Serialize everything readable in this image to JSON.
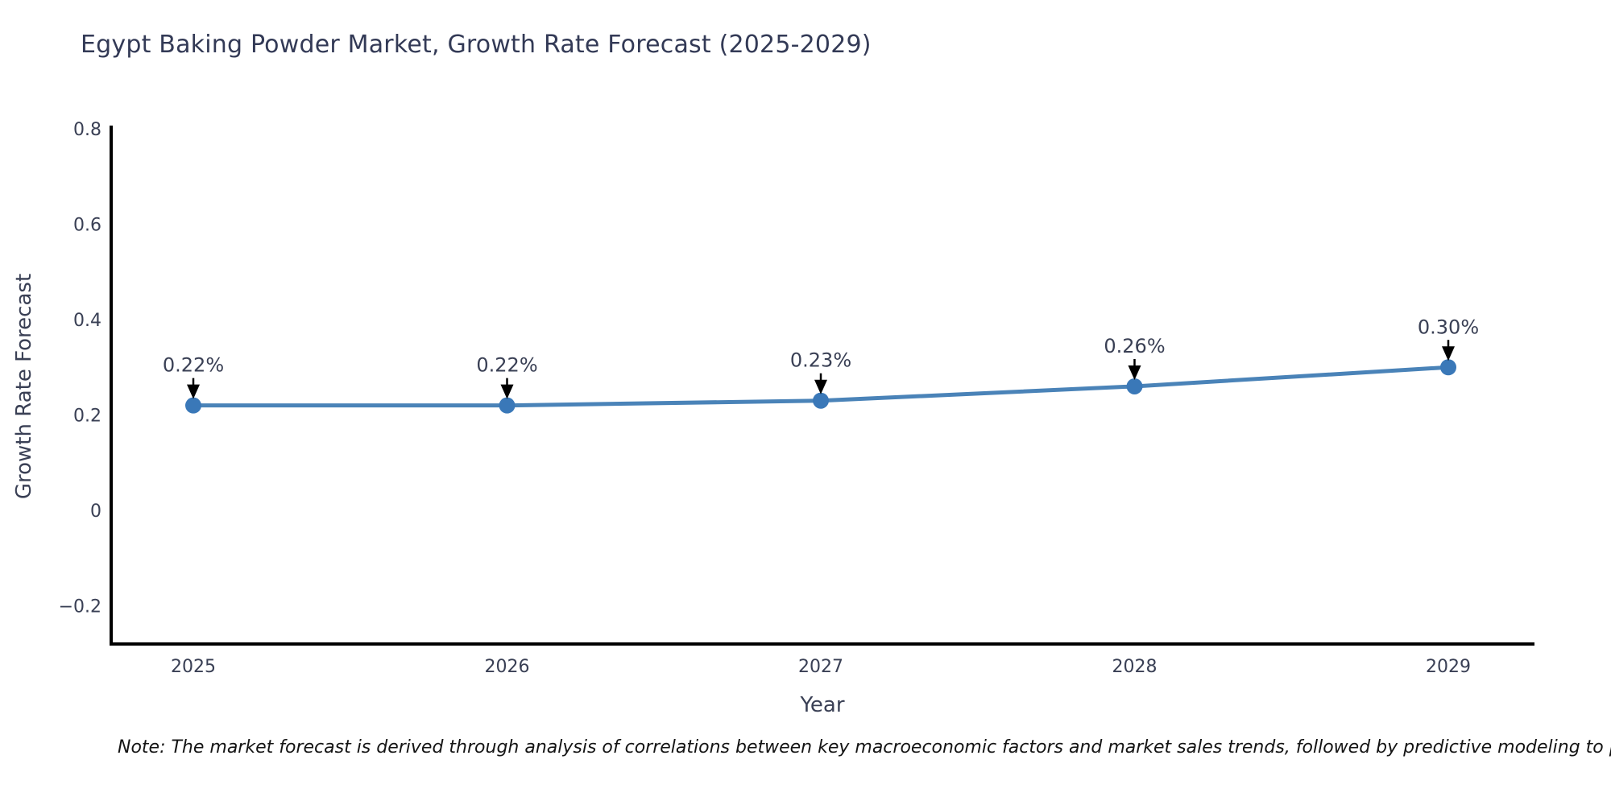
{
  "title": "Egypt Baking Powder Market, Growth Rate Forecast (2025-2029)",
  "note": "Note: The market forecast is derived through analysis of correlations between key macroeconomic factors and market sales trends, followed by predictive modeling to project future sales",
  "colors": {
    "line": "#4a83b8",
    "marker": "#3a78b8",
    "arrow": "#000000",
    "axis": "#000000",
    "tick_text": "#3a4055",
    "annotation_text": "#3a4055",
    "title_text": "#333a56",
    "background": "#ffffff"
  },
  "chart_data": {
    "type": "line",
    "title": "Egypt Baking Powder Market, Growth Rate Forecast (2025-2029)",
    "x": [
      2025,
      2026,
      2027,
      2028,
      2029
    ],
    "values": [
      0.22,
      0.22,
      0.23,
      0.26,
      0.3
    ],
    "point_labels": [
      "0.22%",
      "0.22%",
      "0.23%",
      "0.26%",
      "0.30%"
    ],
    "xlabel": "Year",
    "ylabel": "Growth Rate Forecast",
    "xtick_labels": [
      "2025",
      "2026",
      "2027",
      "2028",
      "2029"
    ],
    "yticks": [
      -0.2,
      0,
      0.2,
      0.4,
      0.6,
      0.8
    ],
    "ytick_labels": [
      "−0.2",
      "0",
      "0.2",
      "0.4",
      "0.6",
      "0.8"
    ],
    "ylim": [
      -0.28,
      0.8
    ],
    "grid": false,
    "legend": "none",
    "annotation_style": "black down-arrows from value labels to markers"
  }
}
